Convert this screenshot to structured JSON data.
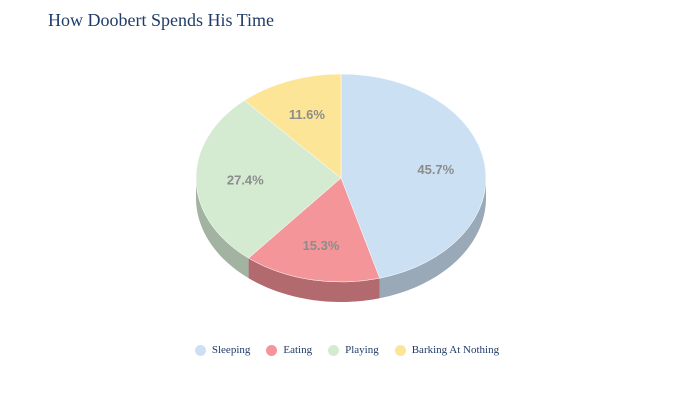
{
  "chart_data": {
    "type": "pie",
    "title": "How Doobert Spends His Time",
    "categories": [
      "Sleeping",
      "Eating",
      "Playing",
      "Barking At Nothing"
    ],
    "values": [
      45.7,
      15.3,
      27.4,
      11.6
    ],
    "value_labels": [
      "45.7%",
      "15.3%",
      "27.4%",
      "11.6%"
    ],
    "colors": [
      "#cce0f4",
      "#f4959a",
      "#d4ebd2",
      "#fde597"
    ],
    "side_colors": [
      "#9aa9b8",
      "#b36a6f",
      "#a3b3a1",
      "#c9b676"
    ],
    "legend_position": "bottom",
    "style": "3d"
  }
}
